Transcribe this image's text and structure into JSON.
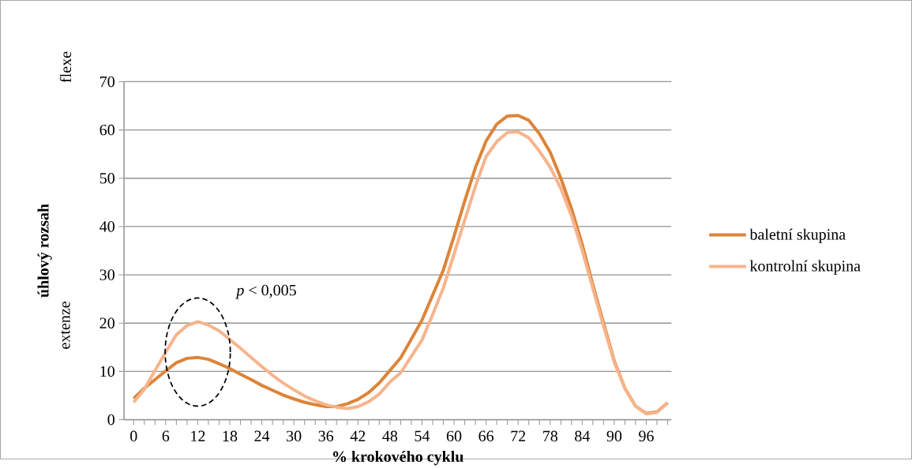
{
  "chart_data": {
    "type": "line",
    "xlabel": "% krokového cyklu",
    "ylabel": "úhlový rozsah",
    "categories": [
      "0",
      null,
      null,
      "6",
      null,
      null,
      "12",
      null,
      null,
      "18",
      null,
      null,
      "24",
      null,
      null,
      "30",
      null,
      null,
      "36",
      null,
      null,
      "42",
      null,
      null,
      "48",
      null,
      null,
      "54",
      null,
      null,
      "60",
      null,
      null,
      "66",
      null,
      null,
      "72",
      null,
      null,
      "78",
      null,
      null,
      "84",
      null,
      null,
      "90",
      null,
      null,
      "96",
      null,
      null
    ],
    "series": [
      {
        "name": "baletní skupina",
        "color": "#dd8439",
        "values": [
          4.4,
          6.5,
          8.3,
          10.1,
          11.8,
          12.7,
          12.9,
          12.5,
          11.6,
          10.6,
          9.4,
          8.3,
          7.1,
          6.1,
          5.1,
          4.3,
          3.6,
          3.1,
          2.7,
          2.7,
          3.3,
          4.2,
          5.6,
          7.6,
          10.2,
          12.8,
          16.7,
          20.6,
          25.8,
          31.0,
          38.0,
          45.3,
          52.2,
          57.7,
          61.2,
          62.9,
          63.0,
          62.0,
          59.2,
          55.4,
          50.0,
          43.7,
          36.3,
          27.9,
          20.0,
          12.2,
          6.5,
          2.8,
          1.3,
          1.6,
          3.5
        ]
      },
      {
        "name": "kontrolní skupina",
        "color": "#f6b48c",
        "values": [
          3.6,
          6.3,
          10.2,
          14.0,
          17.6,
          19.5,
          20.3,
          19.6,
          18.4,
          16.6,
          14.8,
          12.9,
          11.0,
          9.2,
          7.6,
          6.2,
          4.9,
          3.9,
          3.1,
          2.6,
          2.3,
          2.7,
          3.7,
          5.3,
          7.8,
          9.7,
          13.1,
          16.5,
          21.8,
          27.3,
          34.3,
          41.3,
          48.3,
          54.5,
          57.6,
          59.5,
          59.6,
          58.4,
          55.6,
          52.3,
          47.9,
          42.2,
          35.1,
          27.2,
          19.4,
          11.9,
          6.5,
          2.8,
          1.2,
          1.5,
          3.5
        ]
      }
    ],
    "ylim": [
      0,
      70
    ],
    "yticks": [
      0,
      10,
      20,
      30,
      40,
      50,
      60,
      70
    ],
    "grid": "y",
    "legend": "right",
    "marker": "none",
    "line_style": "solid",
    "annotations": [
      "*p* < 0,005",
      "flexe",
      "extenze"
    ]
  }
}
